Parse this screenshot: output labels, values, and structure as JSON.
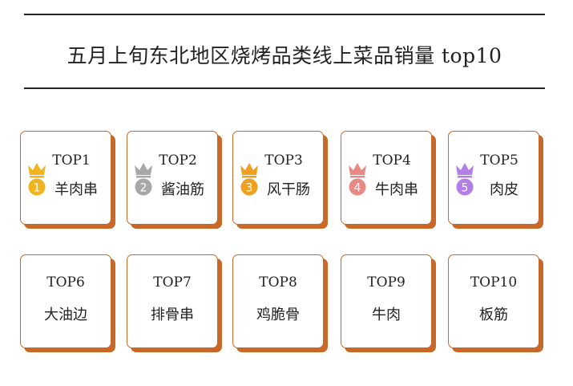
{
  "title": "五月上旬东北地区烧烤品类线上菜品销量 top10",
  "colors": {
    "card_border": "#c8692a",
    "gold": "#f0b41e",
    "silver": "#a8a8a8",
    "bronze": "#f0a020",
    "pink": "#e88a84",
    "purple": "#b47ee8"
  },
  "items": [
    {
      "rank": "TOP1",
      "name": "羊肉串",
      "badge": "1",
      "medal_color": "#f0b41e",
      "icon": "crown-medal-icon"
    },
    {
      "rank": "TOP2",
      "name": "酱油筋",
      "badge": "2",
      "medal_color": "#a8a8a8",
      "icon": "crown-medal-icon"
    },
    {
      "rank": "TOP3",
      "name": "风干肠",
      "badge": "3",
      "medal_color": "#f0a020",
      "icon": "crown-medal-icon"
    },
    {
      "rank": "TOP4",
      "name": "牛肉串",
      "badge": "4",
      "medal_color": "#e88a84",
      "icon": "crown-medal-icon"
    },
    {
      "rank": "TOP5",
      "name": "肉皮",
      "badge": "5",
      "medal_color": "#b47ee8",
      "icon": "crown-medal-icon"
    },
    {
      "rank": "TOP6",
      "name": "大油边"
    },
    {
      "rank": "TOP7",
      "name": "排骨串"
    },
    {
      "rank": "TOP8",
      "name": "鸡脆骨"
    },
    {
      "rank": "TOP9",
      "name": "牛肉"
    },
    {
      "rank": "TOP10",
      "name": "板筋"
    }
  ]
}
